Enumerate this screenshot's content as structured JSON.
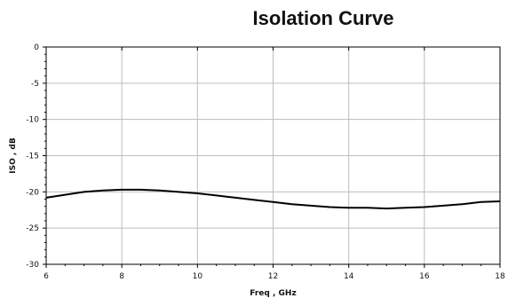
{
  "chart_data": {
    "type": "line",
    "title": "Isolation Curve",
    "xlabel": "Freq , GHz",
    "ylabel": "ISO , dB",
    "xlim": [
      6,
      18
    ],
    "ylim": [
      -30,
      0
    ],
    "x_ticks": [
      6,
      8,
      10,
      12,
      14,
      16,
      18
    ],
    "y_ticks": [
      0,
      -5,
      -10,
      -15,
      -20,
      -25,
      -30
    ],
    "grid": true,
    "series": [
      {
        "x": [
          6,
          6.5,
          7,
          7.5,
          8,
          8.5,
          9,
          9.5,
          10,
          10.5,
          11,
          11.5,
          12,
          12.5,
          13,
          13.5,
          14,
          14.5,
          15,
          15.5,
          16,
          16.5,
          17,
          17.5,
          18
        ],
        "y": [
          -20.8,
          -20.4,
          -20.0,
          -19.8,
          -19.7,
          -19.7,
          -19.8,
          -20.0,
          -20.2,
          -20.5,
          -20.8,
          -21.1,
          -21.4,
          -21.7,
          -21.9,
          -22.1,
          -22.2,
          -22.2,
          -22.3,
          -22.2,
          -22.1,
          -21.9,
          -21.7,
          -21.4,
          -21.3
        ],
        "color": "#000000"
      }
    ]
  }
}
